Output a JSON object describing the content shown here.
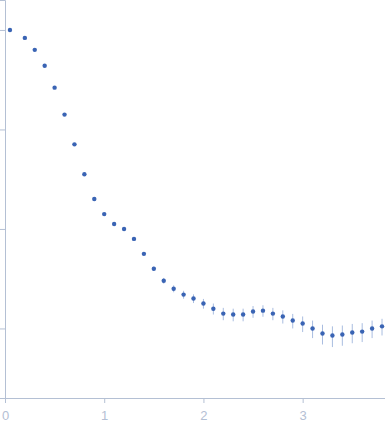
{
  "chart_data": {
    "type": "scatter",
    "x": [
      0.05,
      0.2,
      0.3,
      0.4,
      0.5,
      0.6,
      0.7,
      0.8,
      0.9,
      1.0,
      1.1,
      1.2,
      1.3,
      1.4,
      1.5,
      1.6,
      1.7,
      1.8,
      1.9,
      2.0,
      2.1,
      2.2,
      2.3,
      2.4,
      2.5,
      2.6,
      2.7,
      2.8,
      2.9,
      3.0,
      3.1,
      3.2,
      3.3,
      3.4,
      3.5,
      3.6,
      3.7,
      3.8
    ],
    "values": [
      1,
      0.832,
      0.631,
      0.437,
      0.263,
      0.141,
      0.0708,
      0.0355,
      0.02,
      0.0141,
      0.0112,
      0.01,
      0.00794,
      0.00562,
      0.00398,
      0.00302,
      0.00251,
      0.00219,
      0.002,
      0.00178,
      0.00158,
      0.00141,
      0.00138,
      0.00138,
      0.00148,
      0.00151,
      0.00141,
      0.00132,
      0.0012,
      0.00112,
      0.001,
      0.00089,
      0.00085,
      0.00087,
      0.00091,
      0.00093,
      0.001,
      0.00105
    ],
    "errors": [
      0.01,
      0.005,
      0.004,
      0.003,
      0.002,
      0.001,
      0.0005,
      0.0003,
      0.0002,
      0.0002,
      0.0002,
      0.0002,
      0.0002,
      0.0002,
      0.0002,
      0.0002,
      0.0002,
      0.0002,
      0.0002,
      0.0002,
      0.0002,
      0.0002,
      0.0002,
      0.0002,
      0.0002,
      0.0002,
      0.0002,
      0.0002,
      0.0002,
      0.0002,
      0.0002,
      0.0002,
      0.0002,
      0.0002,
      0.0002,
      0.0002,
      0.0002,
      0.0002
    ],
    "color": "#3a64b4",
    "marker": "circle",
    "log": "y",
    "xlim": [
      0,
      3.83
    ],
    "xticks": [
      0,
      1,
      2,
      3
    ],
    "ylim": [
      0.0002,
      2
    ],
    "yticks": [
      0.001,
      0.01,
      0.1,
      1
    ],
    "tick_labels": "x"
  }
}
